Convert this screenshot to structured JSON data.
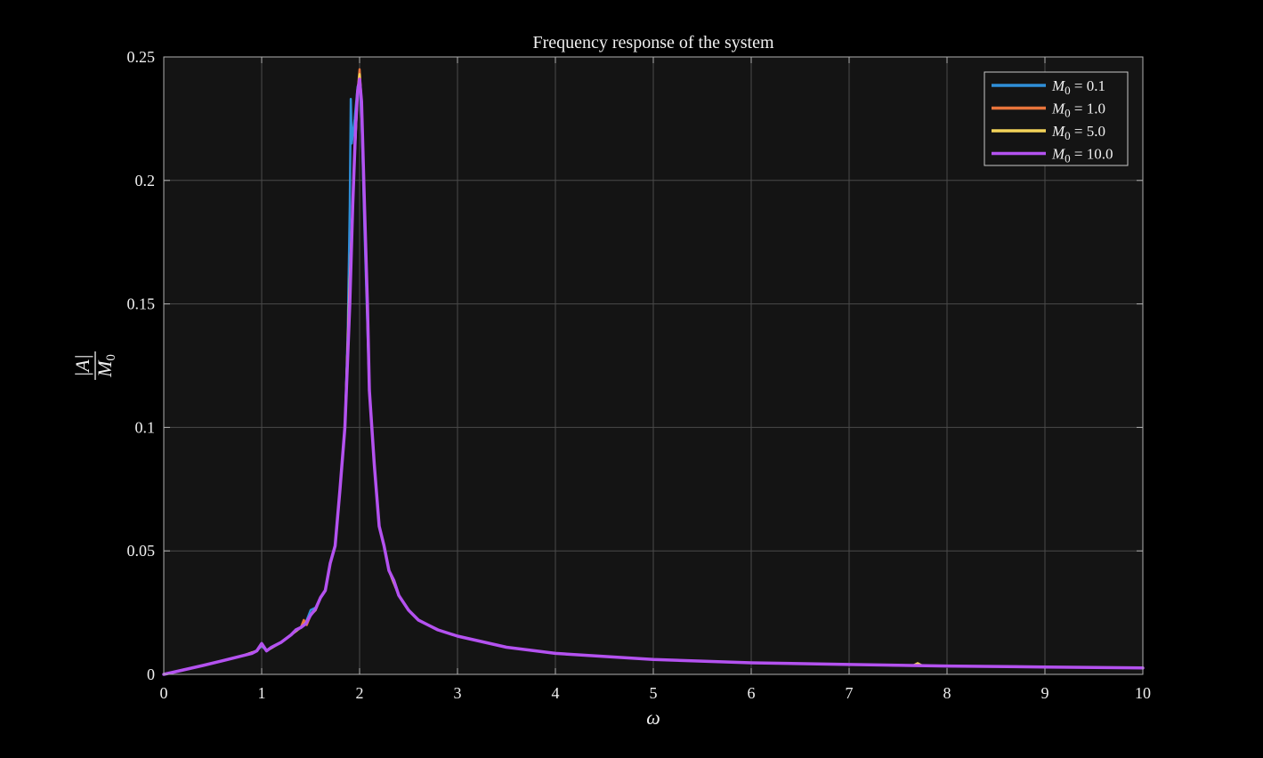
{
  "chart_data": {
    "type": "line",
    "title": "Frequency response of the system",
    "xlabel": "ω",
    "ylabel": {
      "numerator": "|A|",
      "denominator": "M",
      "denominator_sub": "0"
    },
    "xlim": [
      0,
      10
    ],
    "ylim": [
      0,
      0.25
    ],
    "xticks": [
      0,
      1,
      2,
      3,
      4,
      5,
      6,
      7,
      8,
      9,
      10
    ],
    "xtick_labels": [
      "0",
      "1",
      "2",
      "3",
      "4",
      "5",
      "6",
      "7",
      "8",
      "9",
      "10"
    ],
    "yticks": [
      0,
      0.05,
      0.1,
      0.15,
      0.2,
      0.25
    ],
    "ytick_labels": [
      "0",
      "0.05",
      "0.1",
      "0.15",
      "0.2",
      "0.25"
    ],
    "grid": true,
    "legend_position": "top-right",
    "colors": {
      "background": "#000000",
      "plot_area": "#141414",
      "grid": "#4a4a4a",
      "axes": "#b0b0b0",
      "text": "#f0f0f0"
    },
    "series": [
      {
        "name": "M0 = 0.1",
        "legend": {
          "var": "M",
          "sub": "0",
          "rest": " = 0.1"
        },
        "color": "#2f8fd8",
        "x": [
          0,
          0.2,
          0.4,
          0.6,
          0.8,
          0.95,
          1.0,
          1.05,
          1.2,
          1.3,
          1.4,
          1.45,
          1.5,
          1.55,
          1.6,
          1.65,
          1.7,
          1.75,
          1.8,
          1.85,
          1.88,
          1.9,
          1.91,
          1.92,
          1.95,
          1.98,
          2.0,
          2.02,
          2.05,
          2.1,
          2.15,
          2.2,
          2.25,
          2.3,
          2.4,
          2.5,
          2.6,
          2.8,
          3.0,
          3.5,
          4.0,
          5.0,
          6.0,
          7.0,
          8.0,
          9.0,
          10.0
        ],
        "y": [
          0,
          0.0018,
          0.0036,
          0.0055,
          0.0075,
          0.0095,
          0.0115,
          0.0095,
          0.013,
          0.016,
          0.019,
          0.021,
          0.026,
          0.027,
          0.031,
          0.034,
          0.045,
          0.052,
          0.075,
          0.1,
          0.14,
          0.19,
          0.233,
          0.215,
          0.225,
          0.238,
          0.24,
          0.225,
          0.18,
          0.115,
          0.085,
          0.06,
          0.052,
          0.042,
          0.032,
          0.026,
          0.022,
          0.018,
          0.0155,
          0.011,
          0.0085,
          0.006,
          0.0047,
          0.004,
          0.0034,
          0.003,
          0.0026
        ]
      },
      {
        "name": "M0 = 1.0",
        "legend": {
          "var": "M",
          "sub": "0",
          "rest": " = 1.0"
        },
        "color": "#e8743b",
        "x": [
          0,
          0.2,
          0.4,
          0.6,
          0.8,
          0.95,
          1.0,
          1.05,
          1.2,
          1.3,
          1.4,
          1.43,
          1.46,
          1.5,
          1.55,
          1.6,
          1.65,
          1.7,
          1.75,
          1.8,
          1.85,
          1.9,
          1.95,
          1.98,
          2.0,
          2.02,
          2.05,
          2.1,
          2.15,
          2.2,
          2.25,
          2.3,
          2.4,
          2.5,
          2.6,
          2.8,
          3.0,
          3.5,
          4.0,
          5.0,
          6.0,
          7.0,
          8.0,
          9.0,
          10.0
        ],
        "y": [
          0,
          0.0018,
          0.0036,
          0.0055,
          0.0075,
          0.0095,
          0.012,
          0.0095,
          0.013,
          0.016,
          0.019,
          0.022,
          0.02,
          0.024,
          0.026,
          0.031,
          0.034,
          0.045,
          0.052,
          0.075,
          0.1,
          0.16,
          0.21,
          0.236,
          0.245,
          0.232,
          0.19,
          0.115,
          0.085,
          0.06,
          0.052,
          0.042,
          0.032,
          0.026,
          0.022,
          0.018,
          0.0155,
          0.011,
          0.0085,
          0.006,
          0.0047,
          0.004,
          0.0034,
          0.003,
          0.0026
        ]
      },
      {
        "name": "M0 = 5.0",
        "legend": {
          "var": "M",
          "sub": "0",
          "rest": " = 5.0"
        },
        "color": "#f3d45a",
        "x": [
          0,
          0.2,
          0.4,
          0.6,
          0.8,
          0.95,
          1.0,
          1.05,
          1.2,
          1.3,
          1.4,
          1.45,
          1.5,
          1.55,
          1.6,
          1.65,
          1.7,
          1.75,
          1.8,
          1.85,
          1.9,
          1.95,
          1.98,
          2.0,
          2.02,
          2.05,
          2.1,
          2.15,
          2.2,
          2.25,
          2.3,
          2.4,
          2.5,
          2.6,
          2.8,
          3.0,
          3.5,
          4.0,
          5.0,
          6.0,
          7.0,
          7.65,
          7.7,
          7.75,
          8.0,
          9.0,
          10.0
        ],
        "y": [
          0,
          0.0018,
          0.0036,
          0.0055,
          0.0075,
          0.0095,
          0.012,
          0.0095,
          0.013,
          0.016,
          0.019,
          0.021,
          0.024,
          0.026,
          0.031,
          0.034,
          0.045,
          0.052,
          0.075,
          0.1,
          0.16,
          0.21,
          0.236,
          0.243,
          0.232,
          0.19,
          0.115,
          0.085,
          0.06,
          0.052,
          0.042,
          0.032,
          0.026,
          0.022,
          0.018,
          0.0155,
          0.011,
          0.0085,
          0.006,
          0.0047,
          0.004,
          0.0035,
          0.0045,
          0.0035,
          0.0034,
          0.003,
          0.0026
        ]
      },
      {
        "name": "M0 = 10.0",
        "legend": {
          "var": "M",
          "sub": "0",
          "rest": " = 10.0"
        },
        "color": "#b452f0",
        "x": [
          0,
          0.2,
          0.4,
          0.6,
          0.8,
          0.9,
          0.95,
          1.0,
          1.05,
          1.1,
          1.2,
          1.3,
          1.35,
          1.4,
          1.45,
          1.5,
          1.55,
          1.6,
          1.65,
          1.7,
          1.75,
          1.8,
          1.85,
          1.9,
          1.93,
          1.96,
          1.98,
          2.0,
          2.02,
          2.05,
          2.08,
          2.1,
          2.15,
          2.2,
          2.25,
          2.3,
          2.35,
          2.4,
          2.5,
          2.6,
          2.7,
          2.8,
          3.0,
          3.5,
          4.0,
          5.0,
          6.0,
          7.0,
          8.0,
          9.0,
          10.0
        ],
        "y": [
          0,
          0.0018,
          0.0036,
          0.0055,
          0.0075,
          0.0085,
          0.0095,
          0.0125,
          0.0095,
          0.011,
          0.013,
          0.016,
          0.018,
          0.019,
          0.0205,
          0.024,
          0.0265,
          0.031,
          0.034,
          0.045,
          0.052,
          0.075,
          0.1,
          0.15,
          0.19,
          0.222,
          0.236,
          0.241,
          0.232,
          0.19,
          0.15,
          0.115,
          0.085,
          0.06,
          0.052,
          0.042,
          0.038,
          0.032,
          0.026,
          0.022,
          0.02,
          0.018,
          0.0155,
          0.011,
          0.0085,
          0.006,
          0.0047,
          0.004,
          0.0034,
          0.003,
          0.0026
        ]
      }
    ]
  }
}
